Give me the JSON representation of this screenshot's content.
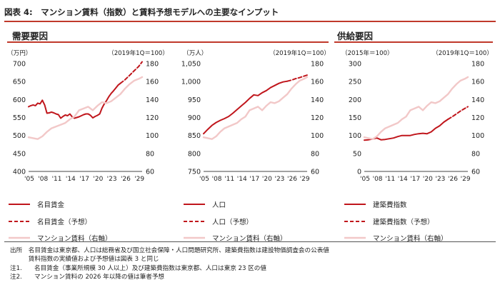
{
  "figure_title": "図表 4:　マンション賃料（指数）と賃料予想モデルへの主要なインプット",
  "sections": {
    "demand": "需要要因",
    "supply": "供給要因"
  },
  "colors": {
    "nominal": "#c0161c",
    "rent": "#f2c8c8",
    "text": "#222222"
  },
  "legend_labels": {
    "wage_actual": "名目賃金",
    "wage_forecast": "名目賃金（予想）",
    "pop_actual": "人口",
    "pop_forecast": "人口（予想）",
    "cost_actual": "建築費指数",
    "cost_forecast": "建築費指数（予想）",
    "rent": "マンション賃料（右軸）"
  },
  "notes": [
    "出所　名目賃金は東京都、人口は総務省及び国立社会保障・人口問題研究所、建築費指数は建設物価調査会の公表値",
    "　　　賃料指数の実績値および予想値は図表 3 と同じ",
    "注1.　　名目賃金（事業所規模 30 人以上）及び建築費指数は東京都、人口は東京 23 区の値",
    "注2.　　マンション賃料の 2026 年以降の値は筆者予想"
  ],
  "chart_data": [
    {
      "type": "line",
      "left_unit": "（万円）",
      "right_unit": "（2019年1Q＝100）",
      "left_ticks": [
        "700",
        "650",
        "600",
        "550",
        "500",
        "450",
        "400"
      ],
      "right_ticks": [
        "180",
        "160",
        "140",
        "120",
        "100",
        "80",
        "60"
      ],
      "ylim_left": [
        400,
        700
      ],
      "ylim_right": [
        60,
        180
      ],
      "x_ticks": [
        "'05",
        "'08",
        "'11",
        "'14",
        "'17",
        "'20",
        "'23",
        "'26",
        "'29"
      ],
      "xlim": [
        2005,
        2029.75
      ],
      "series": [
        {
          "name": "名目賃金",
          "axis": "left",
          "style": "actual",
          "x": [
            2005,
            2005.5,
            2006,
            2006.5,
            2007,
            2007.5,
            2008,
            2008.5,
            2009,
            2009.5,
            2010,
            2010.5,
            2011,
            2011.5,
            2012,
            2012.5,
            2013,
            2013.5,
            2014,
            2014.5,
            2015,
            2015.5,
            2016,
            2016.5,
            2017,
            2017.5,
            2018,
            2018.5,
            2019,
            2019.5,
            2020,
            2020.5,
            2021,
            2021.5,
            2022,
            2022.5,
            2023,
            2023.5,
            2024,
            2024.5,
            2025
          ],
          "y": [
            580,
            583,
            585,
            583,
            590,
            588,
            598,
            585,
            562,
            563,
            565,
            563,
            560,
            558,
            548,
            553,
            557,
            555,
            560,
            552,
            548,
            550,
            552,
            555,
            558,
            560,
            560,
            556,
            549,
            553,
            556,
            560,
            576,
            588,
            597,
            608,
            617,
            624,
            632,
            640,
            645
          ]
        },
        {
          "name": "名目賃金（予想）",
          "axis": "left",
          "style": "forecast",
          "x": [
            2025,
            2026,
            2027,
            2028,
            2029,
            2029.75
          ],
          "y": [
            645,
            655,
            667,
            680,
            692,
            705
          ]
        },
        {
          "name": "マンション賃料（右軸）",
          "axis": "right",
          "style": "rent",
          "x": [
            2005,
            2006,
            2007,
            2008,
            2009,
            2010,
            2011,
            2012,
            2013,
            2014,
            2015,
            2016,
            2017,
            2018,
            2019,
            2020,
            2021,
            2022,
            2023,
            2024,
            2025,
            2026,
            2027,
            2028,
            2029,
            2029.75
          ],
          "y": [
            98,
            97,
            96,
            99,
            104,
            108,
            110,
            112,
            114,
            118,
            121,
            128,
            130,
            132,
            128,
            133,
            137,
            136,
            138,
            142,
            146,
            152,
            157,
            161,
            163,
            165
          ]
        }
      ]
    },
    {
      "type": "line",
      "left_unit": "（万人）",
      "right_unit": "（2019年1Q＝100）",
      "left_ticks": [
        "1,050",
        "1,000",
        "950",
        "900",
        "850",
        "800",
        "750"
      ],
      "right_ticks": [
        "180",
        "160",
        "140",
        "120",
        "100",
        "80",
        "60"
      ],
      "ylim_left": [
        750,
        1050
      ],
      "ylim_right": [
        60,
        180
      ],
      "x_ticks": [
        "'05",
        "'08",
        "'11",
        "'14",
        "'17",
        "'20",
        "'23",
        "'26",
        "'29"
      ],
      "xlim": [
        2005,
        2029.75
      ],
      "series": [
        {
          "name": "人口",
          "axis": "left",
          "style": "actual",
          "x": [
            2005,
            2006,
            2007,
            2008,
            2009,
            2010,
            2011,
            2012,
            2013,
            2014,
            2015,
            2016,
            2017,
            2018,
            2019,
            2020,
            2021,
            2022,
            2023,
            2024,
            2025
          ],
          "y": [
            855,
            867,
            878,
            886,
            892,
            897,
            903,
            912,
            922,
            932,
            942,
            953,
            963,
            961,
            969,
            975,
            983,
            989,
            995,
            999,
            1001
          ]
        },
        {
          "name": "人口（予想）",
          "axis": "left",
          "style": "forecast",
          "x": [
            2025,
            2026,
            2027,
            2028,
            2029,
            2029.75
          ],
          "y": [
            1001,
            1004,
            1008,
            1011,
            1015,
            1018
          ]
        },
        {
          "name": "マンション賃料（右軸）",
          "axis": "right",
          "style": "rent",
          "x": [
            2005,
            2006,
            2007,
            2008,
            2009,
            2010,
            2011,
            2012,
            2013,
            2014,
            2015,
            2016,
            2017,
            2018,
            2019,
            2020,
            2021,
            2022,
            2023,
            2024,
            2025,
            2026,
            2027,
            2028,
            2029,
            2029.75
          ],
          "y": [
            98,
            97,
            96,
            99,
            104,
            108,
            110,
            112,
            114,
            118,
            121,
            128,
            130,
            132,
            128,
            133,
            137,
            136,
            138,
            142,
            146,
            152,
            157,
            161,
            163,
            165
          ]
        }
      ]
    },
    {
      "type": "line",
      "left_unit": "（2015年＝100）",
      "right_unit": "（2019年1Q＝100）",
      "left_ticks": [
        "300",
        "250",
        "200",
        "150",
        "100",
        "50",
        "0"
      ],
      "right_ticks": [
        "180",
        "160",
        "140",
        "120",
        "100",
        "80",
        "60"
      ],
      "ylim_left": [
        0,
        300
      ],
      "ylim_right": [
        60,
        180
      ],
      "x_ticks": [
        "'05",
        "'08",
        "'11",
        "'14",
        "'17",
        "'20",
        "'23",
        "'26",
        "'29"
      ],
      "xlim": [
        2005,
        2029.75
      ],
      "series": [
        {
          "name": "建築費指数",
          "axis": "left",
          "style": "actual",
          "x": [
            2005,
            2006,
            2007,
            2008,
            2009,
            2010,
            2011,
            2012,
            2013,
            2014,
            2015,
            2016,
            2017,
            2018,
            2019,
            2020,
            2021,
            2022,
            2023,
            2024,
            2025
          ],
          "y": [
            87,
            88,
            90,
            93,
            88,
            89,
            91,
            93,
            97,
            100,
            100,
            100,
            103,
            105,
            106,
            105,
            110,
            120,
            127,
            137,
            145
          ]
        },
        {
          "name": "建築費指数（予想）",
          "axis": "left",
          "style": "forecast",
          "x": [
            2025,
            2026,
            2027,
            2028,
            2029,
            2029.75
          ],
          "y": [
            145,
            152,
            160,
            168,
            175,
            180
          ]
        },
        {
          "name": "マンション賃料（右軸）",
          "axis": "right",
          "style": "rent",
          "x": [
            2005,
            2006,
            2007,
            2008,
            2009,
            2010,
            2011,
            2012,
            2013,
            2014,
            2015,
            2016,
            2017,
            2018,
            2019,
            2020,
            2021,
            2022,
            2023,
            2024,
            2025,
            2026,
            2027,
            2028,
            2029,
            2029.75
          ],
          "y": [
            98,
            97,
            96,
            99,
            104,
            108,
            110,
            112,
            114,
            118,
            121,
            128,
            130,
            132,
            128,
            133,
            137,
            136,
            138,
            142,
            146,
            152,
            157,
            161,
            163,
            165
          ]
        }
      ]
    }
  ]
}
